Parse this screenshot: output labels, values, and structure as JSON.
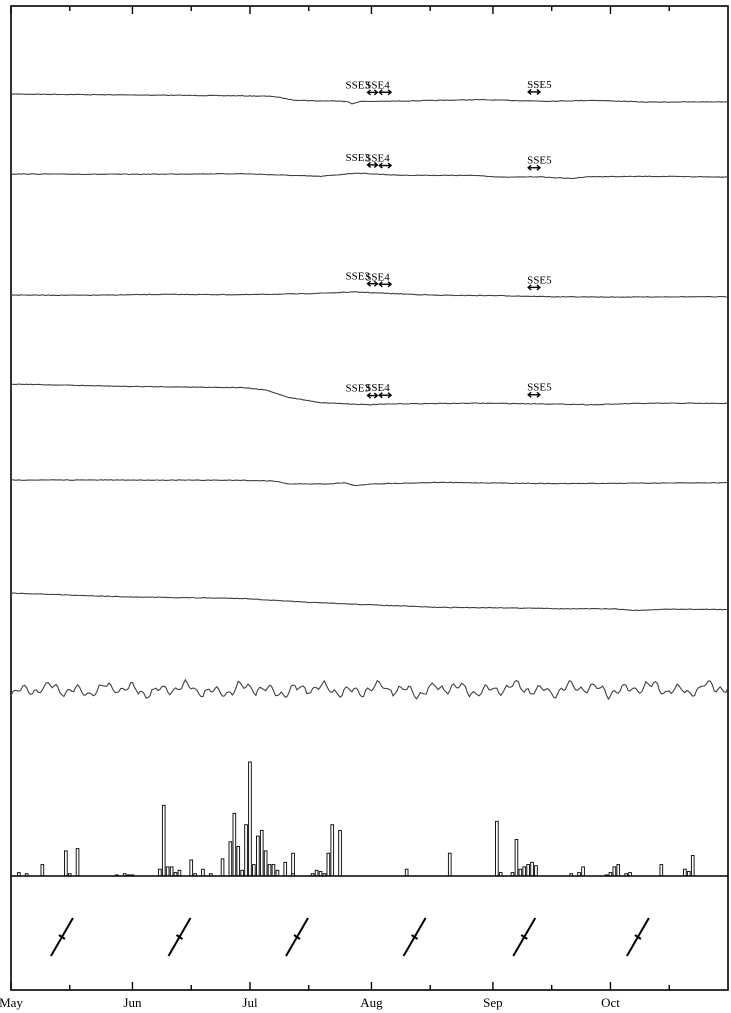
{
  "chart_data": {
    "type": "line",
    "title": "",
    "xlabel": "",
    "ylabel": "",
    "x_axis": {
      "unit": "day of year",
      "range": [
        121,
        304
      ],
      "month_labels": [
        "May",
        "Jun",
        "Jul",
        "Aug",
        "Sep",
        "Oct"
      ],
      "month_starts": [
        121,
        152,
        182,
        213,
        244,
        274
      ]
    },
    "series": [
      {
        "trace": 1,
        "points": [
          [
            121,
            0
          ],
          [
            140,
            -0.2
          ],
          [
            160,
            -0.4
          ],
          [
            180,
            -0.6
          ],
          [
            188,
            -0.8
          ],
          [
            193,
            -2.0
          ],
          [
            199,
            -2.3
          ],
          [
            205,
            -2.3
          ],
          [
            207,
            -2.6
          ],
          [
            208,
            -3.3
          ],
          [
            210,
            -2.5
          ],
          [
            218,
            -2.4
          ],
          [
            240,
            -1.9
          ],
          [
            258,
            -2.4
          ],
          [
            270,
            -2.1
          ],
          [
            283,
            -2.7
          ],
          [
            304,
            -2.6
          ]
        ]
      },
      {
        "trace": 2,
        "points": [
          [
            121,
            0
          ],
          [
            150,
            -0.1
          ],
          [
            180,
            0.1
          ],
          [
            200,
            -0.8
          ],
          [
            209,
            0.3
          ],
          [
            220,
            -0.4
          ],
          [
            240,
            -0.5
          ],
          [
            247,
            -1.1
          ],
          [
            255,
            -0.9
          ],
          [
            264,
            -1.5
          ],
          [
            268,
            -0.9
          ],
          [
            285,
            -0.8
          ],
          [
            304,
            -1.0
          ]
        ]
      },
      {
        "trace": 3,
        "points": [
          [
            121,
            0
          ],
          [
            140,
            -0.1
          ],
          [
            160,
            0.2
          ],
          [
            180,
            0.1
          ],
          [
            195,
            0.4
          ],
          [
            209,
            1.0
          ],
          [
            216,
            0.6
          ],
          [
            230,
            -0.1
          ],
          [
            245,
            -0.2
          ],
          [
            260,
            -0.6
          ],
          [
            275,
            -0.7
          ],
          [
            290,
            -0.6
          ],
          [
            304,
            -0.6
          ]
        ]
      },
      {
        "trace": 4,
        "points": [
          [
            121,
            0
          ],
          [
            150,
            -0.8
          ],
          [
            180,
            -1.2
          ],
          [
            186,
            -2.0
          ],
          [
            192,
            -4.5
          ],
          [
            200,
            -6.2
          ],
          [
            212,
            -6.9
          ],
          [
            220,
            -6.6
          ],
          [
            240,
            -6.4
          ],
          [
            256,
            -6.6
          ],
          [
            270,
            -6.9
          ],
          [
            280,
            -6.5
          ],
          [
            290,
            -6.4
          ],
          [
            304,
            -6.5
          ]
        ]
      },
      {
        "trace": 5,
        "points": [
          [
            121,
            0
          ],
          [
            150,
            0
          ],
          [
            180,
            -0.1
          ],
          [
            188,
            -0.3
          ],
          [
            192,
            -1.3
          ],
          [
            202,
            -1.3
          ],
          [
            206,
            -0.9
          ],
          [
            209,
            -1.9
          ],
          [
            213,
            -1.3
          ],
          [
            230,
            -0.8
          ],
          [
            260,
            -1.2
          ],
          [
            290,
            -1.0
          ],
          [
            304,
            -0.9
          ]
        ]
      },
      {
        "trace": 6,
        "points": [
          [
            121,
            0
          ],
          [
            150,
            -1.3
          ],
          [
            180,
            -1.8
          ],
          [
            195,
            -3.0
          ],
          [
            210,
            -3.8
          ],
          [
            230,
            -4.8
          ],
          [
            245,
            -4.9
          ],
          [
            260,
            -5.2
          ],
          [
            275,
            -5.3
          ],
          [
            280,
            -5.8
          ],
          [
            290,
            -5.4
          ],
          [
            304,
            -5.5
          ]
        ]
      },
      {
        "trace": 7,
        "noisy": true,
        "points": [
          [
            121,
            0
          ],
          [
            304,
            0.3
          ]
        ]
      }
    ],
    "events": [
      {
        "label": "SSE3",
        "start": 212,
        "end": 214.5
      },
      {
        "label": "SSE4",
        "start": 215,
        "end": 218
      },
      {
        "label": "SSE5",
        "start": 253,
        "end": 256
      }
    ],
    "event_rows": [
      1,
      2,
      3,
      4
    ],
    "bars": {
      "type": "bar",
      "ylim": [
        0,
        100
      ],
      "days": [
        123,
        125,
        129,
        135,
        136,
        138,
        148,
        150,
        151,
        152,
        159,
        160,
        161,
        162,
        163,
        164,
        167,
        168,
        170,
        172,
        175,
        177,
        178,
        179,
        180,
        181,
        182,
        183,
        184,
        185,
        186,
        187,
        188,
        189,
        191,
        193,
        193,
        198,
        199,
        200,
        201,
        202,
        203,
        205,
        222,
        233,
        245,
        246,
        249,
        250,
        251,
        252,
        253,
        254,
        255,
        264,
        266,
        267,
        273,
        274,
        275,
        276,
        278,
        279,
        287,
        293,
        294,
        295
      ],
      "values": [
        3,
        2,
        10,
        22,
        2,
        24,
        1,
        2,
        1,
        1,
        6,
        62,
        8,
        8,
        3,
        5,
        14,
        2,
        6,
        2,
        15,
        30,
        55,
        26,
        5,
        45,
        100,
        10,
        35,
        40,
        22,
        10,
        10,
        5,
        12,
        20,
        2,
        2,
        5,
        4,
        2,
        20,
        45,
        40,
        6,
        20,
        48,
        3,
        3,
        32,
        6,
        8,
        10,
        12,
        9,
        2,
        3,
        8,
        1,
        3,
        8,
        10,
        2,
        3,
        10,
        6,
        4,
        18
      ]
    },
    "glyph_days": [
      134,
      164,
      194,
      224,
      252,
      281
    ]
  }
}
